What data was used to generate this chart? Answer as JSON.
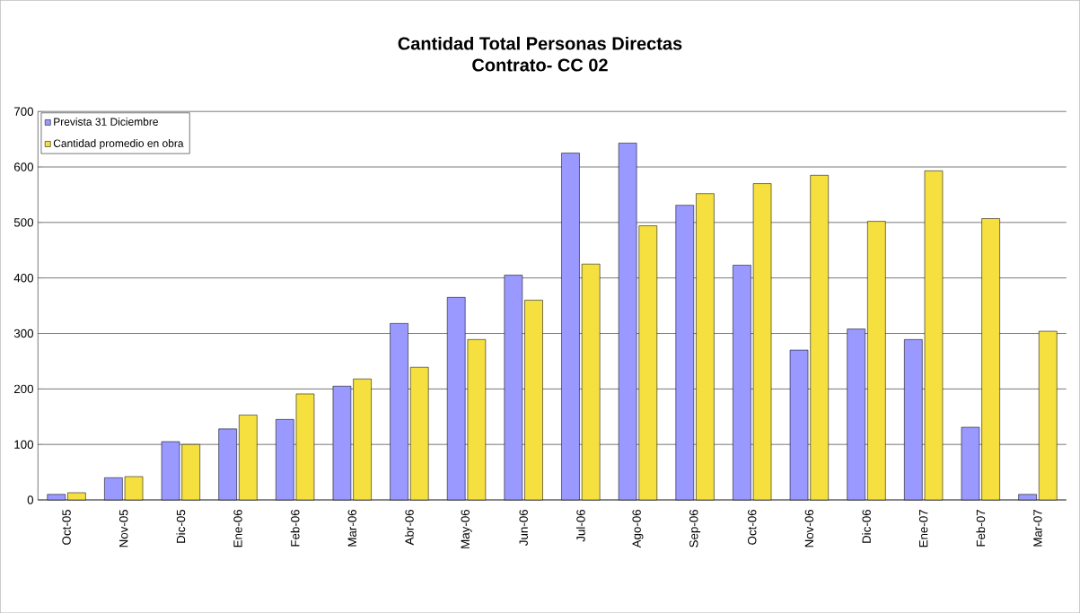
{
  "chart_data": {
    "type": "bar",
    "title": "Cantidad Total Personas Directas",
    "subtitle": "Contrato- CC 02",
    "categories": [
      "Oct-05",
      "Nov-05",
      "Dic-05",
      "Ene-06",
      "Feb-06",
      "Mar-06",
      "Abr-06",
      "May-06",
      "Jun-06",
      "Jul-06",
      "Ago-06",
      "Sep-06",
      "Oct-06",
      "Nov-06",
      "Dic-06",
      "Ene-07",
      "Feb-07",
      "Mar-07"
    ],
    "series": [
      {
        "name": "Prevista 31 Diciembre",
        "color": "#9999ff",
        "values": [
          10,
          40,
          105,
          128,
          145,
          205,
          318,
          365,
          405,
          625,
          643,
          531,
          423,
          270,
          308,
          289,
          131,
          10
        ]
      },
      {
        "name": "Cantidad promedio en obra",
        "color": "#f5e040",
        "values": [
          13,
          42,
          100,
          153,
          191,
          218,
          239,
          289,
          360,
          425,
          494,
          552,
          570,
          585,
          502,
          593,
          507,
          304
        ]
      }
    ],
    "ylim": [
      0,
      700
    ],
    "yticks": [
      0,
      100,
      200,
      300,
      400,
      500,
      600,
      700
    ],
    "grid": "y",
    "legend": "top left"
  }
}
